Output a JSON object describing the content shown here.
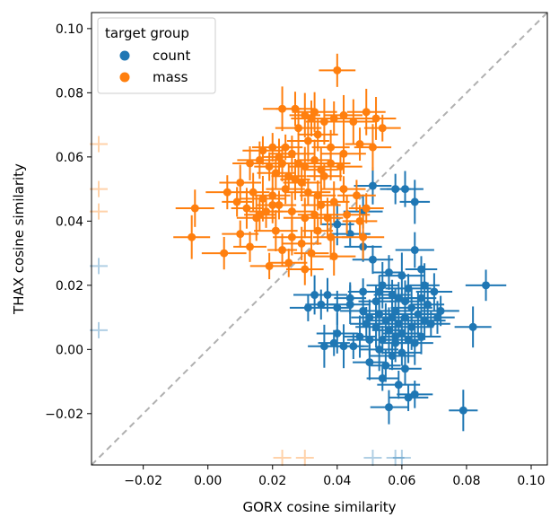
{
  "chart_data": {
    "type": "scatter",
    "title": "",
    "xlabel": "GORX cosine similarity",
    "ylabel": "THAX cosine similarity",
    "xlim": [
      -0.036,
      0.105
    ],
    "ylim": [
      -0.036,
      0.105
    ],
    "xticks": [
      -0.02,
      0.0,
      0.02,
      0.04,
      0.06,
      0.08,
      0.1
    ],
    "xtick_labels": [
      "−0.02",
      "0.00",
      "0.02",
      "0.04",
      "0.06",
      "0.08",
      "0.10"
    ],
    "yticks": [
      -0.02,
      0.0,
      0.02,
      0.04,
      0.06,
      0.08,
      0.1
    ],
    "ytick_labels": [
      "−0.02",
      "0.00",
      "0.02",
      "0.04",
      "0.06",
      "0.08",
      "0.10"
    ],
    "diagonal": {
      "from": [
        -0.036,
        -0.036
      ],
      "to": [
        0.105,
        0.105
      ],
      "color": "#b0b0b0",
      "style": "dashed"
    },
    "legend": {
      "title": "target group",
      "position": "upper-left"
    },
    "series": [
      {
        "name": "count",
        "color": "#1f77b4",
        "points": [
          [
            0.051,
            0.051
          ],
          [
            0.058,
            0.05
          ],
          [
            0.061,
            0.05
          ],
          [
            0.064,
            0.046
          ],
          [
            0.048,
            0.043
          ],
          [
            0.04,
            0.039
          ],
          [
            0.044,
            0.036
          ],
          [
            0.048,
            0.032
          ],
          [
            0.051,
            0.028
          ],
          [
            0.064,
            0.031
          ],
          [
            0.066,
            0.025
          ],
          [
            0.06,
            0.023
          ],
          [
            0.056,
            0.024
          ],
          [
            0.062,
            0.019
          ],
          [
            0.07,
            0.018
          ],
          [
            0.086,
            0.02
          ],
          [
            0.054,
            0.02
          ],
          [
            0.057,
            0.017
          ],
          [
            0.059,
            0.016
          ],
          [
            0.061,
            0.015
          ],
          [
            0.052,
            0.015
          ],
          [
            0.066,
            0.016
          ],
          [
            0.068,
            0.014
          ],
          [
            0.072,
            0.012
          ],
          [
            0.037,
            0.017
          ],
          [
            0.033,
            0.017
          ],
          [
            0.035,
            0.014
          ],
          [
            0.031,
            0.013
          ],
          [
            0.04,
            0.013
          ],
          [
            0.044,
            0.014
          ],
          [
            0.048,
            0.012
          ],
          [
            0.05,
            0.01
          ],
          [
            0.053,
            0.011
          ],
          [
            0.055,
            0.009
          ],
          [
            0.057,
            0.01
          ],
          [
            0.059,
            0.008
          ],
          [
            0.061,
            0.01
          ],
          [
            0.063,
            0.007
          ],
          [
            0.065,
            0.011
          ],
          [
            0.067,
            0.009
          ],
          [
            0.069,
            0.008
          ],
          [
            0.071,
            0.01
          ],
          [
            0.049,
            0.008
          ],
          [
            0.052,
            0.007
          ],
          [
            0.056,
            0.006
          ],
          [
            0.058,
            0.004
          ],
          [
            0.06,
            0.005
          ],
          [
            0.062,
            0.003
          ],
          [
            0.064,
            0.002
          ],
          [
            0.066,
            0.004
          ],
          [
            0.047,
            0.004
          ],
          [
            0.05,
            0.003
          ],
          [
            0.054,
            0.003
          ],
          [
            0.04,
            0.005
          ],
          [
            0.042,
            0.001
          ],
          [
            0.036,
            0.001
          ],
          [
            0.039,
            0.002
          ],
          [
            0.045,
            0.001
          ],
          [
            0.053,
            0.0
          ],
          [
            0.057,
            -0.002
          ],
          [
            0.06,
            -0.001
          ],
          [
            0.05,
            -0.004
          ],
          [
            0.055,
            -0.005
          ],
          [
            0.061,
            -0.006
          ],
          [
            0.059,
            -0.011
          ],
          [
            0.054,
            -0.009
          ],
          [
            0.062,
            -0.015
          ],
          [
            0.064,
            -0.014
          ],
          [
            0.056,
            -0.018
          ],
          [
            0.079,
            -0.019
          ],
          [
            0.082,
            0.007
          ],
          [
            0.058,
            0.012
          ],
          [
            0.063,
            0.013
          ],
          [
            0.053,
            0.018
          ],
          [
            0.067,
            0.02
          ],
          [
            0.048,
            0.018
          ],
          [
            0.044,
            0.016
          ],
          [
            0.058,
            0.002
          ]
        ]
      },
      {
        "name": "mass",
        "color": "#ff7f0e",
        "points": [
          [
            0.04,
            0.087
          ],
          [
            0.023,
            0.075
          ],
          [
            0.027,
            0.075
          ],
          [
            0.03,
            0.073
          ],
          [
            0.032,
            0.072
          ],
          [
            0.033,
            0.074
          ],
          [
            0.036,
            0.071
          ],
          [
            0.039,
            0.072
          ],
          [
            0.042,
            0.073
          ],
          [
            0.045,
            0.071
          ],
          [
            0.049,
            0.074
          ],
          [
            0.052,
            0.072
          ],
          [
            0.054,
            0.069
          ],
          [
            0.028,
            0.069
          ],
          [
            0.034,
            0.067
          ],
          [
            0.031,
            0.065
          ],
          [
            0.038,
            0.063
          ],
          [
            0.042,
            0.061
          ],
          [
            0.047,
            0.064
          ],
          [
            0.051,
            0.063
          ],
          [
            0.017,
            0.062
          ],
          [
            0.02,
            0.063
          ],
          [
            0.022,
            0.06
          ],
          [
            0.024,
            0.063
          ],
          [
            0.026,
            0.061
          ],
          [
            0.028,
            0.058
          ],
          [
            0.03,
            0.057
          ],
          [
            0.033,
            0.059
          ],
          [
            0.035,
            0.056
          ],
          [
            0.038,
            0.058
          ],
          [
            0.041,
            0.057
          ],
          [
            0.013,
            0.058
          ],
          [
            0.016,
            0.059
          ],
          [
            0.019,
            0.057
          ],
          [
            0.021,
            0.055
          ],
          [
            0.023,
            0.058
          ],
          [
            0.025,
            0.054
          ],
          [
            0.027,
            0.053
          ],
          [
            0.029,
            0.052
          ],
          [
            0.031,
            0.049
          ],
          [
            0.034,
            0.048
          ],
          [
            0.036,
            0.054
          ],
          [
            0.039,
            0.046
          ],
          [
            0.042,
            0.05
          ],
          [
            0.046,
            0.048
          ],
          [
            0.049,
            0.044
          ],
          [
            0.01,
            0.052
          ],
          [
            0.014,
            0.049
          ],
          [
            0.017,
            0.047
          ],
          [
            0.02,
            0.048
          ],
          [
            0.006,
            0.049
          ],
          [
            0.009,
            0.046
          ],
          [
            0.012,
            0.044
          ],
          [
            0.015,
            0.041
          ],
          [
            0.018,
            0.043
          ],
          [
            0.022,
            0.045
          ],
          [
            0.026,
            0.043
          ],
          [
            0.03,
            0.041
          ],
          [
            0.033,
            0.042
          ],
          [
            0.037,
            0.041
          ],
          [
            0.043,
            0.042
          ],
          [
            0.047,
            0.04
          ],
          [
            -0.004,
            0.044
          ],
          [
            0.016,
            0.042
          ],
          [
            0.021,
            0.037
          ],
          [
            0.026,
            0.035
          ],
          [
            0.029,
            0.033
          ],
          [
            0.034,
            0.037
          ],
          [
            0.038,
            0.035
          ],
          [
            0.048,
            0.035
          ],
          [
            -0.005,
            0.035
          ],
          [
            0.01,
            0.036
          ],
          [
            0.005,
            0.03
          ],
          [
            0.013,
            0.032
          ],
          [
            0.023,
            0.031
          ],
          [
            0.032,
            0.03
          ],
          [
            0.039,
            0.029
          ],
          [
            0.019,
            0.026
          ],
          [
            0.025,
            0.027
          ],
          [
            0.03,
            0.025
          ],
          [
            0.02,
            0.045
          ],
          [
            0.024,
            0.05
          ],
          [
            0.035,
            0.045
          ]
        ]
      }
    ],
    "rug": {
      "note": "faint crosses along axes for points outside the plotted range",
      "left": [
        {
          "series": "mass",
          "y": 0.064
        },
        {
          "series": "mass",
          "y": 0.05
        },
        {
          "series": "mass",
          "y": 0.043
        },
        {
          "series": "count",
          "y": 0.026
        },
        {
          "series": "count",
          "y": 0.006
        }
      ],
      "bottom": [
        {
          "series": "mass",
          "x": 0.023
        },
        {
          "series": "mass",
          "x": 0.03
        },
        {
          "series": "count",
          "x": 0.051
        },
        {
          "series": "count",
          "x": 0.058
        },
        {
          "series": "count",
          "x": 0.06
        }
      ]
    }
  }
}
